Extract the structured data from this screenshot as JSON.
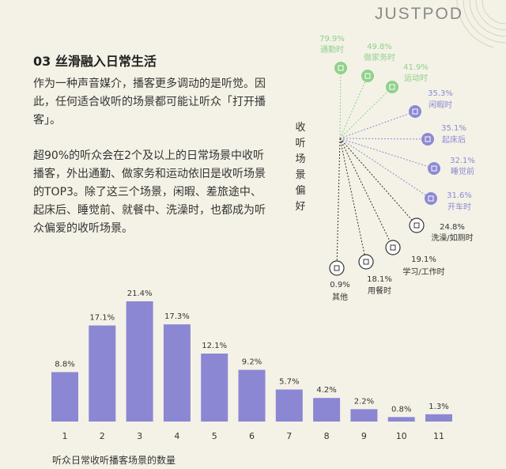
{
  "header": {
    "logo_text": "JUSTPOD"
  },
  "article": {
    "section_title": "03 丝滑融入日常生活",
    "paragraph1": "作为一种声音媒介，播客更多调动的是听觉。因此，任何适合收听的场景都可能让听众「打开播客」。",
    "paragraph2": "超90%的听众会在2个及以上的日常场景中收听播客，外出通勤、做家务和运动依旧是收听场景的TOP3。除了这三个场景，闲暇、差旅途中、起床后、睡觉前、就餐中、洗澡时，也都成为听众偏爱的收听场景。"
  },
  "colors": {
    "background": "#f4f2e6",
    "bar": "#8b87d3",
    "green": "#8fd18b",
    "purple": "#8c8ad3",
    "dark": "#333333",
    "logo": "#8a8a8a"
  },
  "chart_data": [
    {
      "type": "radial",
      "title": "收听场景偏好",
      "items": [
        {
          "pct": "79.9%",
          "label": "通勤时",
          "icon": "bus-icon",
          "group": "green"
        },
        {
          "pct": "49.8%",
          "label": "做家务时",
          "icon": "broom-icon",
          "group": "green"
        },
        {
          "pct": "41.9%",
          "label": "运动时",
          "icon": "running-icon",
          "group": "green"
        },
        {
          "pct": "35.3%",
          "label": "闲暇时",
          "icon": "coffee-icon",
          "group": "purple"
        },
        {
          "pct": "35.1%",
          "label": "起床后",
          "icon": "alarm-icon",
          "group": "purple"
        },
        {
          "pct": "32.1%",
          "label": "睡觉前",
          "icon": "bed-icon",
          "group": "purple"
        },
        {
          "pct": "31.6%",
          "label": "开车时",
          "icon": "car-icon",
          "group": "purple"
        },
        {
          "pct": "24.8%",
          "label": "洗澡/如厕时",
          "icon": "shower-icon",
          "group": "dark"
        },
        {
          "pct": "19.1%",
          "label": "学习/工作时",
          "icon": "pen-icon",
          "group": "dark"
        },
        {
          "pct": "18.1%",
          "label": "用餐时",
          "icon": "meal-icon",
          "group": "dark"
        },
        {
          "pct": "0.9%",
          "label": "其他",
          "icon": "infinity-icon",
          "group": "dark"
        }
      ]
    },
    {
      "type": "bar",
      "categories": [
        "1",
        "2",
        "3",
        "4",
        "5",
        "6",
        "7",
        "8",
        "9",
        "10",
        "11"
      ],
      "values": [
        8.8,
        17.1,
        21.4,
        17.3,
        12.1,
        9.2,
        5.7,
        4.2,
        2.2,
        0.8,
        1.3
      ],
      "value_labels": [
        "8.8%",
        "17.1%",
        "21.4%",
        "17.3%",
        "12.1%",
        "9.2%",
        "5.7%",
        "4.2%",
        "2.2%",
        "0.8%",
        "1.3%"
      ],
      "xlabel": "听众日常收听播客场景的数量",
      "ylim": [
        0,
        21.4
      ]
    }
  ]
}
